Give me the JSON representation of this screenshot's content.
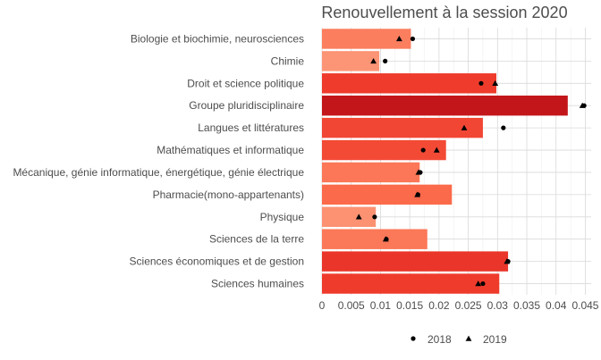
{
  "chart_data": {
    "type": "bar",
    "orientation": "horizontal",
    "title": "Renouvellement à la session 2020",
    "xlabel": "",
    "ylabel": "",
    "xlim": [
      0,
      0.046
    ],
    "xticks": [
      0,
      0.005,
      0.01,
      0.015,
      0.02,
      0.025,
      0.03,
      0.035,
      0.04,
      0.045
    ],
    "xtick_labels": [
      "0",
      "0.005",
      "0.01",
      "0.015",
      "0.02",
      "0.025",
      "0.03",
      "0.035",
      "0.04",
      "0.045"
    ],
    "grid": true,
    "legend_position": "bottom",
    "categories": [
      "Biologie et biochimie, neurosciences",
      "Chimie",
      "Droit et science politique",
      "Groupe pluridisciplinaire",
      "Langues et littératures",
      "Mathématiques et informatique",
      "Mécanique, génie informatique, énergétique, génie électrique",
      "Pharmacie(mono-appartenants)",
      "Physique",
      "Sciences de la terre",
      "Sciences économiques et de gestion",
      "Sciences humaines"
    ],
    "values": [
      0.0152,
      0.0098,
      0.0298,
      0.042,
      0.0275,
      0.0212,
      0.0167,
      0.0222,
      0.0092,
      0.018,
      0.0318,
      0.0303
    ],
    "bar_colors": [
      "#fb7e5f",
      "#fc9575",
      "#ef3b2c",
      "#c3161b",
      "#f24634",
      "#f34a36",
      "#fb7757",
      "#fb6a4a",
      "#fc9272",
      "#fb7858",
      "#ea362a",
      "#ef3b2c"
    ],
    "series": [
      {
        "name": "2018",
        "marker": "circle",
        "values": [
          0.0155,
          0.0108,
          0.0272,
          0.0448,
          0.031,
          0.0173,
          0.0168,
          0.0164,
          0.009,
          0.011,
          0.0318,
          0.0275
        ]
      },
      {
        "name": "2019",
        "marker": "triangle",
        "values": [
          0.0132,
          0.0088,
          0.0296,
          0.0445,
          0.0243,
          0.0196,
          0.0165,
          0.0163,
          0.0063,
          0.0109,
          0.0316,
          0.0267
        ]
      }
    ],
    "legend": [
      {
        "label": "2018",
        "marker": "circle"
      },
      {
        "label": "2019",
        "marker": "triangle"
      }
    ]
  }
}
